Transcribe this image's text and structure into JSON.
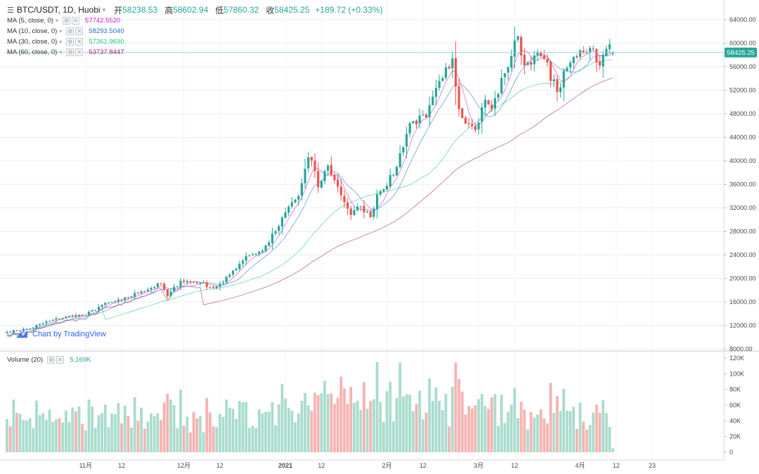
{
  "header": {
    "menu_icon": "menu-icon",
    "symbol": "BTC/USDT, 1D, Huobi",
    "caret": "▾",
    "open_label": "开",
    "open": "58238.53",
    "high_label": "高",
    "high": "58602.94",
    "low_label": "低",
    "low": "57860.32",
    "close_label": "收",
    "close": "58425.25",
    "change": "+189.72 (+0.33%)"
  },
  "ma_legends": [
    {
      "label": "MA (5, close, 0)",
      "value": "57742.5520",
      "color": "#c71fc7"
    },
    {
      "label": "MA (10, close, 0)",
      "value": "58293.5040",
      "color": "#1e6fd6"
    },
    {
      "label": "MA (30, close, 0)",
      "value": "57361.9690",
      "color": "#26c281"
    },
    {
      "label": "MA (60, close, 0)",
      "value": "53737.8447",
      "color": "#a3206e"
    }
  ],
  "volume_legend": {
    "label": "Volume (20)",
    "value": "5.169K"
  },
  "attribution": "Chart by TradingView",
  "last_price_tag": "58425.25",
  "colors": {
    "up": "#26a69a",
    "down": "#ef5350",
    "up_vol": "#a9dccd",
    "down_vol": "#f5b3b1",
    "grid": "#eeeeee",
    "price_line": "#8fd9cf"
  },
  "chart_data": {
    "type": "candlestick",
    "title": "BTC/USDT, 1D, Huobi",
    "start_date": "2020-10-08",
    "price_axis": {
      "min": 8000,
      "max": 64000,
      "ticks": [
        "64000.00",
        "60000.00",
        "56000.00",
        "52000.00",
        "48000.00",
        "44000.00",
        "40000.00",
        "36000.00",
        "32000.00",
        "28000.00",
        "24000.00",
        "20000.00",
        "16000.00",
        "12000.00",
        "8000.00"
      ]
    },
    "volume_axis": {
      "min": 0,
      "max": 120000,
      "ticks": [
        "120K",
        "100K",
        "80K",
        "60K",
        "40K",
        "20K",
        "0"
      ]
    },
    "time_axis_labels": [
      {
        "label": "11月",
        "date": "2020-11-01"
      },
      {
        "label": "12",
        "date": "2020-11-12"
      },
      {
        "label": "12月",
        "date": "2020-12-01"
      },
      {
        "label": "12",
        "date": "2020-12-12"
      },
      {
        "label": "2021",
        "date": "2021-01-01"
      },
      {
        "label": "12",
        "date": "2021-01-12"
      },
      {
        "label": "2月",
        "date": "2021-02-01"
      },
      {
        "label": "12",
        "date": "2021-02-12"
      },
      {
        "label": "3月",
        "date": "2021-03-01"
      },
      {
        "label": "12",
        "date": "2021-03-12"
      },
      {
        "label": "4月",
        "date": "2021-04-01"
      },
      {
        "label": "12",
        "date": "2021-04-12"
      },
      {
        "label": "23",
        "date": "2021-04-23"
      }
    ],
    "anchors": [
      {
        "date": "2020-10-08",
        "close": 10900
      },
      {
        "date": "2020-10-15",
        "close": 11500
      },
      {
        "date": "2020-10-21",
        "close": 12800
      },
      {
        "date": "2020-10-27",
        "close": 13600
      },
      {
        "date": "2020-11-01",
        "close": 13800
      },
      {
        "date": "2020-11-06",
        "close": 15500
      },
      {
        "date": "2020-11-12",
        "close": 16300
      },
      {
        "date": "2020-11-18",
        "close": 17800
      },
      {
        "date": "2020-11-24",
        "close": 19100
      },
      {
        "date": "2020-11-26",
        "close": 17000
      },
      {
        "date": "2020-11-30",
        "close": 19600
      },
      {
        "date": "2020-12-06",
        "close": 19300
      },
      {
        "date": "2020-12-10",
        "close": 18400
      },
      {
        "date": "2020-12-13",
        "close": 19300
      },
      {
        "date": "2020-12-16",
        "close": 21300
      },
      {
        "date": "2020-12-20",
        "close": 23800
      },
      {
        "date": "2020-12-25",
        "close": 24700
      },
      {
        "date": "2020-12-30",
        "close": 28900
      },
      {
        "date": "2021-01-02",
        "close": 32200
      },
      {
        "date": "2021-01-05",
        "close": 34000
      },
      {
        "date": "2021-01-08",
        "close": 40600
      },
      {
        "date": "2021-01-10",
        "close": 38300
      },
      {
        "date": "2021-01-11",
        "close": 35500
      },
      {
        "date": "2021-01-14",
        "close": 39200
      },
      {
        "date": "2021-01-16",
        "close": 36700
      },
      {
        "date": "2021-01-21",
        "close": 30800
      },
      {
        "date": "2021-01-24",
        "close": 32300
      },
      {
        "date": "2021-01-27",
        "close": 30400
      },
      {
        "date": "2021-01-29",
        "close": 34300
      },
      {
        "date": "2021-02-03",
        "close": 37600
      },
      {
        "date": "2021-02-08",
        "close": 46400
      },
      {
        "date": "2021-02-13",
        "close": 47400
      },
      {
        "date": "2021-02-19",
        "close": 55900
      },
      {
        "date": "2021-02-21",
        "close": 57400
      },
      {
        "date": "2021-02-23",
        "close": 48800
      },
      {
        "date": "2021-02-26",
        "close": 46300
      },
      {
        "date": "2021-02-28",
        "close": 45200
      },
      {
        "date": "2021-03-03",
        "close": 50400
      },
      {
        "date": "2021-03-05",
        "close": 48800
      },
      {
        "date": "2021-03-09",
        "close": 54900
      },
      {
        "date": "2021-03-13",
        "close": 61200
      },
      {
        "date": "2021-03-15",
        "close": 56200
      },
      {
        "date": "2021-03-18",
        "close": 57900
      },
      {
        "date": "2021-03-21",
        "close": 57300
      },
      {
        "date": "2021-03-25",
        "close": 51700
      },
      {
        "date": "2021-03-28",
        "close": 55800
      },
      {
        "date": "2021-04-01",
        "close": 58800
      },
      {
        "date": "2021-04-05",
        "close": 59100
      },
      {
        "date": "2021-04-07",
        "close": 56200
      },
      {
        "date": "2021-04-10",
        "close": 59800
      },
      {
        "date": "2021-04-11",
        "close": 58425.25
      }
    ]
  }
}
